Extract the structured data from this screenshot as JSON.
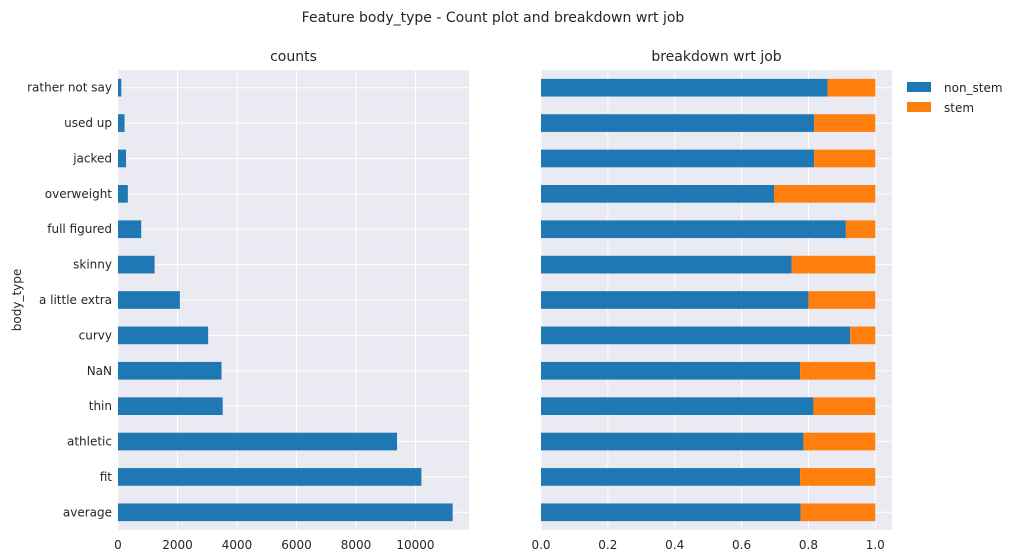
{
  "figure": {
    "suptitle": "Feature body_type - Count plot and breakdown wrt job"
  },
  "colors": {
    "axes_bg": "#eaeaf2",
    "grid": "#ffffff",
    "non_stem": "#1f77b4",
    "stem": "#ff7f0e"
  },
  "chart_data": [
    {
      "type": "bar",
      "orientation": "horizontal",
      "title": "counts",
      "ylabel": "body_type",
      "xlabel": "",
      "categories": [
        "average",
        "fit",
        "athletic",
        "thin",
        "NaN",
        "curvy",
        "a little extra",
        "skinny",
        "full figured",
        "overweight",
        "jacked",
        "used up",
        "rather not say"
      ],
      "values": [
        11250,
        10200,
        9380,
        3520,
        3480,
        3030,
        2080,
        1230,
        780,
        330,
        270,
        220,
        110
      ],
      "xlim": [
        0,
        11800
      ],
      "xticks": [
        "0",
        "2000",
        "4000",
        "6000",
        "8000",
        "10000"
      ],
      "grid": true
    },
    {
      "type": "bar",
      "orientation": "horizontal",
      "stacked": true,
      "title": "breakdown wrt job",
      "xlabel": "",
      "categories": [
        "average",
        "fit",
        "athletic",
        "thin",
        "NaN",
        "curvy",
        "a little extra",
        "skinny",
        "full figured",
        "overweight",
        "jacked",
        "used up",
        "rather not say"
      ],
      "series": [
        {
          "name": "non_stem",
          "values": [
            0.777,
            0.775,
            0.785,
            0.815,
            0.775,
            0.925,
            0.8,
            0.75,
            0.912,
            0.697,
            0.817,
            0.817,
            0.857
          ]
        },
        {
          "name": "stem",
          "values": [
            0.223,
            0.225,
            0.215,
            0.185,
            0.225,
            0.075,
            0.2,
            0.25,
            0.088,
            0.303,
            0.183,
            0.183,
            0.143
          ]
        }
      ],
      "xlim": [
        0,
        1.05
      ],
      "xticks": [
        "0.0",
        "0.2",
        "0.4",
        "0.6",
        "0.8",
        "1.0"
      ],
      "legend_position": "outside upper right",
      "grid": true
    }
  ]
}
